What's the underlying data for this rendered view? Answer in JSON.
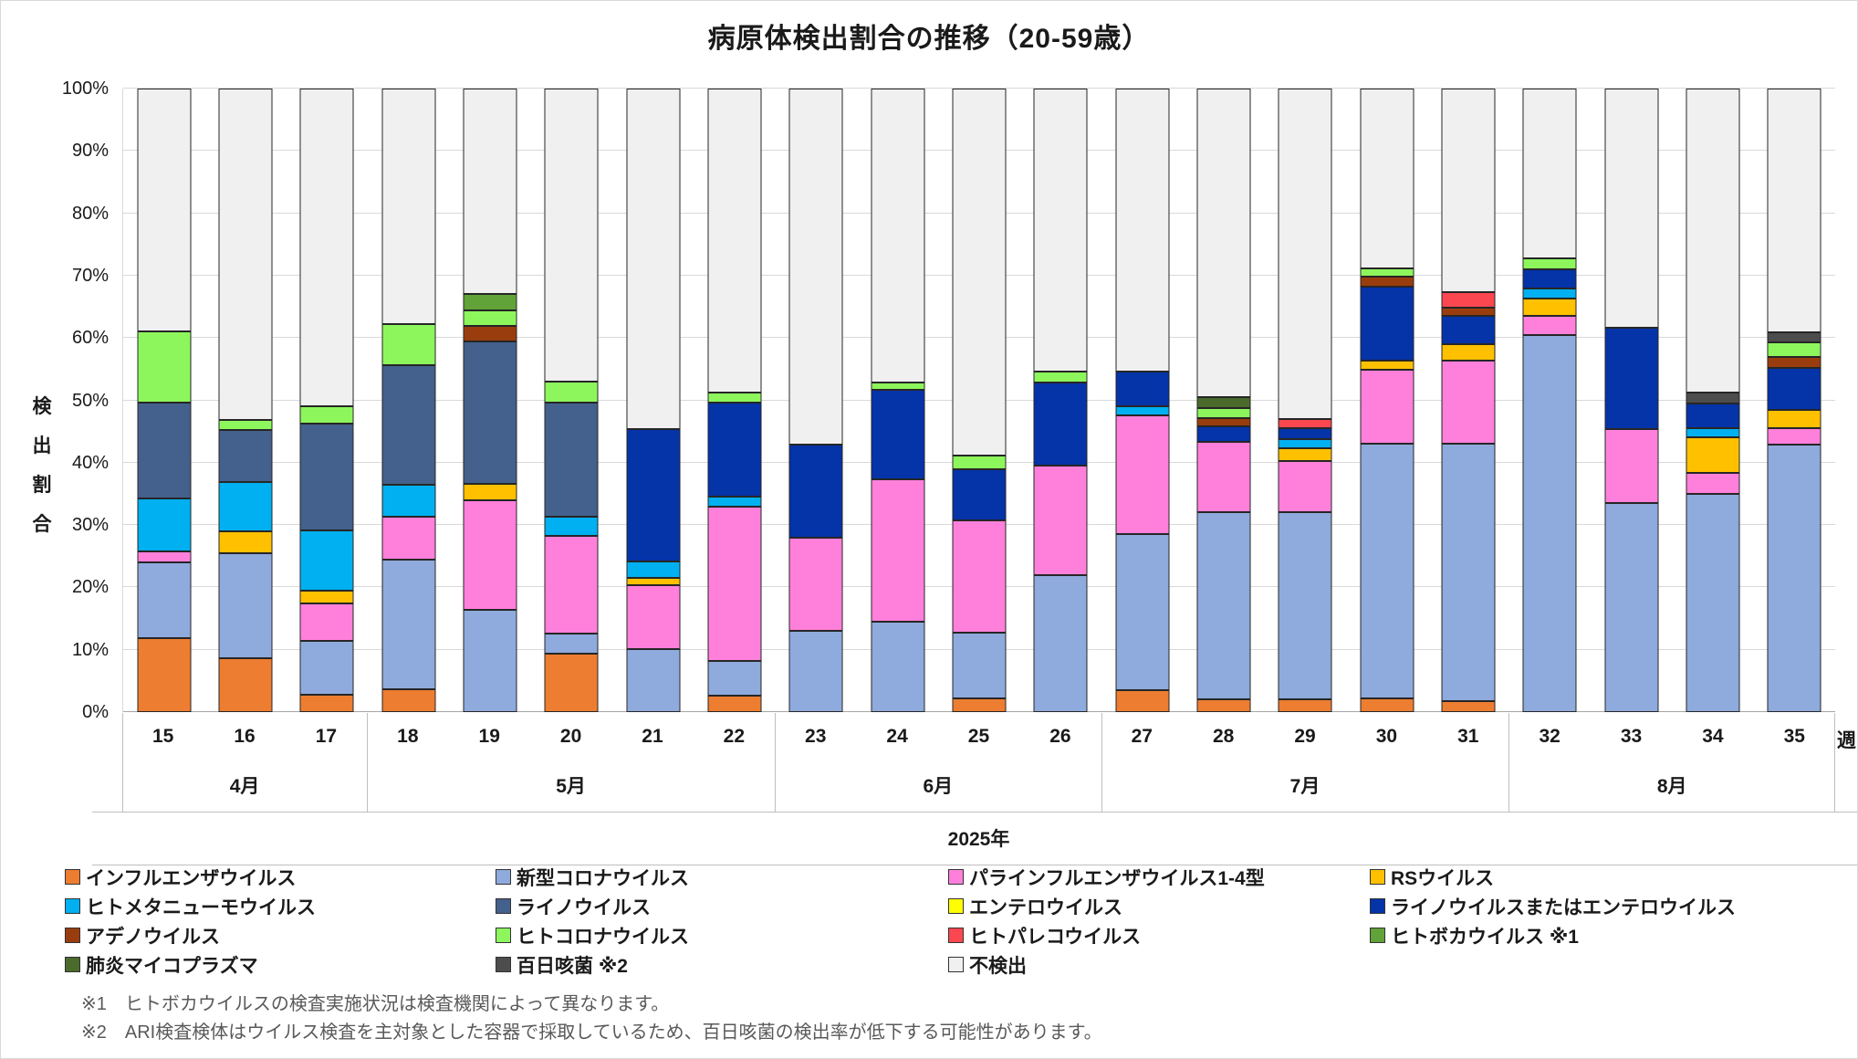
{
  "title": "病原体検出割合の推移（20-59歳）",
  "y_axis": {
    "title_chars": [
      "検",
      "出",
      "割",
      "合"
    ],
    "title": "検出割合",
    "tick_labels": [
      "0%",
      "10%",
      "20%",
      "30%",
      "40%",
      "50%",
      "60%",
      "70%",
      "80%",
      "90%",
      "100%"
    ]
  },
  "x_axis": {
    "unit_label": "週",
    "year_label": "2025年"
  },
  "chart_data": {
    "type": "bar",
    "stacked": true,
    "stack_total": 100,
    "ylim": [
      0,
      100
    ],
    "grid": true,
    "legend_position": "bottom",
    "categories": [
      15,
      16,
      17,
      18,
      19,
      20,
      21,
      22,
      23,
      24,
      25,
      26,
      27,
      28,
      29,
      30,
      31,
      32,
      33,
      34,
      35
    ],
    "month_groups": [
      {
        "label": "4月",
        "weeks": [
          15,
          16,
          17
        ]
      },
      {
        "label": "5月",
        "weeks": [
          18,
          19,
          20,
          21,
          22
        ]
      },
      {
        "label": "6月",
        "weeks": [
          23,
          24,
          25,
          26
        ]
      },
      {
        "label": "7月",
        "weeks": [
          27,
          28,
          29,
          30,
          31
        ]
      },
      {
        "label": "8月",
        "weeks": [
          32,
          33,
          34,
          35
        ]
      }
    ],
    "series": [
      {
        "key": "influenza",
        "name": "インフルエンザウイルス",
        "color": "#ED7D31",
        "values": [
          11.8,
          8.6,
          2.8,
          3.7,
          0,
          9.3,
          0,
          2.6,
          0,
          0,
          2.2,
          0,
          3.5,
          2,
          2,
          2.2,
          1.8,
          0,
          0,
          0,
          0
        ]
      },
      {
        "key": "covid19",
        "name": "新型コロナウイルス",
        "color": "#8FAADC",
        "values": [
          12.2,
          16.9,
          8.6,
          20.8,
          16.4,
          3.3,
          10.1,
          5.6,
          13,
          14.5,
          10.6,
          22,
          25.1,
          30.1,
          30.1,
          40.9,
          41.3,
          60.4,
          33.5,
          35,
          42.9
        ]
      },
      {
        "key": "parainfluenza",
        "name": "パラインフルエンザウイルス1-4型",
        "color": "#FF80DB",
        "values": [
          1.8,
          0,
          6.1,
          6.8,
          17.6,
          15.6,
          10.2,
          24.8,
          14.9,
          22.9,
          17.9,
          17.6,
          19,
          11.3,
          8.2,
          11.8,
          13.3,
          3.1,
          11.9,
          3.4,
          2.6
        ]
      },
      {
        "key": "rsv",
        "name": "RSウイルス",
        "color": "#FFC000",
        "values": [
          0,
          3.5,
          2,
          0,
          2.6,
          0,
          1.2,
          0,
          0,
          0,
          0,
          0,
          0,
          0,
          2,
          1.5,
          2.6,
          2.9,
          0,
          5.7,
          3
        ]
      },
      {
        "key": "hmpv",
        "name": "ヒトメタニューモウイルス",
        "color": "#00B0F0",
        "values": [
          8.5,
          7.9,
          9.7,
          5.1,
          0,
          3.1,
          2.7,
          1.5,
          0,
          0,
          0,
          0,
          1.4,
          0,
          1.5,
          0,
          0,
          1.5,
          0,
          1.4,
          0
        ]
      },
      {
        "key": "rhinovirus",
        "name": "ライノウイルス",
        "color": "#44608C",
        "values": [
          15.3,
          8.4,
          17.1,
          19.2,
          22.8,
          18.3,
          0,
          0,
          0,
          0,
          0,
          0,
          0,
          0,
          0,
          0,
          0,
          0,
          0,
          0,
          0
        ]
      },
      {
        "key": "enterovirus",
        "name": "エンテロウイルス",
        "color": "#FFFF00",
        "values": [
          0,
          0,
          0,
          0,
          0,
          0,
          0,
          0,
          0,
          0,
          0,
          0,
          0,
          0,
          0,
          0,
          0,
          0,
          0,
          0,
          0
        ]
      },
      {
        "key": "rhino-or-entero",
        "name": "ライノウイルスまたはエンテロウイルス",
        "color": "#0533A8",
        "values": [
          0,
          0,
          0,
          0,
          0,
          0,
          21.2,
          15.1,
          15,
          14.3,
          8.3,
          13.3,
          5.6,
          2.4,
          1.8,
          11.9,
          4.5,
          3.1,
          16.2,
          4,
          6.7
        ]
      },
      {
        "key": "adenovirus",
        "name": "アデノウイルス",
        "color": "#9A3D0E",
        "values": [
          0,
          0,
          0,
          0,
          2.5,
          0,
          0,
          0,
          0,
          0,
          0,
          0,
          0,
          1.4,
          0,
          1.5,
          1.3,
          0,
          0,
          0,
          1.7
        ]
      },
      {
        "key": "hcov",
        "name": "ヒトコロナウイルス",
        "color": "#8DF65C",
        "values": [
          11.4,
          1.6,
          2.8,
          6.6,
          2.6,
          3.4,
          0,
          1.6,
          0,
          1.1,
          2.2,
          1.7,
          0,
          1.6,
          0,
          1.4,
          0,
          1.7,
          0,
          0,
          2.4
        ]
      },
      {
        "key": "parechovirus",
        "name": "ヒトパレコウイルス",
        "color": "#FA4750",
        "values": [
          0,
          0,
          0,
          0,
          0,
          0,
          0,
          0,
          0,
          0,
          0,
          0,
          0,
          0,
          1.4,
          0,
          2.5,
          0,
          0,
          0,
          0
        ]
      },
      {
        "key": "bocavirus",
        "name": "ヒトボカウイルス",
        "color": "#61A338",
        "values": [
          0,
          0,
          0,
          0,
          2.6,
          0,
          0,
          0,
          0,
          0,
          0,
          0,
          0,
          0,
          0,
          0,
          0,
          0,
          0,
          0,
          0
        ]
      },
      {
        "key": "mycoplasma",
        "name": "肺炎マイコプラズマ",
        "color": "#4A6B2C",
        "values": [
          0,
          0,
          0,
          0,
          0,
          0,
          0,
          0,
          0,
          0,
          0,
          0,
          0,
          1.7,
          0,
          0,
          0,
          0,
          0,
          0,
          0
        ]
      },
      {
        "key": "pertussis",
        "name": "百日咳菌",
        "color": "#4D4D4D",
        "values": [
          0,
          0,
          0,
          0,
          0,
          0,
          0,
          0,
          0,
          0,
          0,
          0,
          0,
          0,
          0,
          0,
          0,
          0,
          0,
          1.7,
          1.6
        ]
      },
      {
        "key": "not-detected",
        "name": "不検出",
        "color": "#F0F0F0",
        "values": [
          39,
          53.1,
          50.9,
          37.8,
          32.9,
          47,
          54.6,
          48.8,
          57.1,
          47.2,
          58.8,
          45.4,
          45.4,
          49.5,
          53,
          28.8,
          32.7,
          27.3,
          38.4,
          48.8,
          39.1
        ]
      }
    ]
  },
  "legend": {
    "items": [
      {
        "label": "インフルエンザウイルス",
        "color": "#ED7D31"
      },
      {
        "label": "新型コロナウイルス",
        "color": "#8FAADC"
      },
      {
        "label": "パラインフルエンザウイルス1-4型",
        "color": "#FF80DB"
      },
      {
        "label": "RSウイルス",
        "color": "#FFC000"
      },
      {
        "label": "ヒトメタニューモウイルス",
        "color": "#00B0F0"
      },
      {
        "label": "ライノウイルス",
        "color": "#44608C"
      },
      {
        "label": "エンテロウイルス",
        "color": "#FFFF00"
      },
      {
        "label": "ライノウイルスまたはエンテロウイルス",
        "color": "#0533A8"
      },
      {
        "label": "アデノウイルス",
        "color": "#9A3D0E"
      },
      {
        "label": "ヒトコロナウイルス",
        "color": "#8DF65C"
      },
      {
        "label": "ヒトパレコウイルス",
        "color": "#FA4750"
      },
      {
        "label": "ヒトボカウイルス ※1",
        "color": "#61A338"
      },
      {
        "label": "肺炎マイコプラズマ",
        "color": "#4A6B2C"
      },
      {
        "label": "百日咳菌 ※2",
        "color": "#4D4D4D"
      },
      {
        "label": "不検出",
        "color": "#F0F0F0"
      }
    ]
  },
  "footnotes": [
    "※1　ヒトボカウイルスの検査実施状況は検査機関によって異なります。",
    "※2　ARI検査検体はウイルス検査を主対象とした容器で採取しているため、百日咳菌の検出率が低下する可能性があります。"
  ]
}
